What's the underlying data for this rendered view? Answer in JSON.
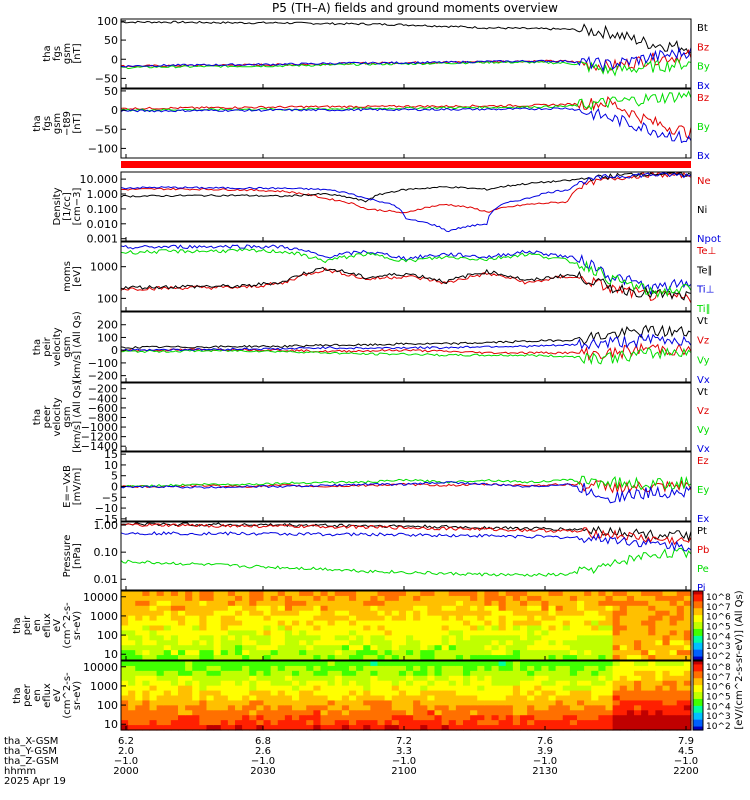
{
  "title": "P5 (TH–A) fields and ground moments overview",
  "colors": {
    "black": "#000000",
    "red": "#e00000",
    "green": "#00dd00",
    "blue": "#0000e0",
    "frame": "#000000",
    "separator": "#ff0000"
  },
  "chart_data": [
    {
      "id": "fgs",
      "type": "line",
      "ylabel": [
        "tha",
        "fgs",
        "gsm",
        "[nT]"
      ],
      "yticks": [
        "100",
        "50",
        "0",
        "−50"
      ],
      "ylim": [
        -75,
        105
      ],
      "series": [
        {
          "name": "Bt",
          "color": "#000000",
          "values": [
            97,
            97,
            96,
            95,
            95,
            93,
            92,
            90,
            86,
            82,
            80,
            78,
            70,
            40,
            30
          ]
        },
        {
          "name": "Bz",
          "color": "#e00000",
          "values": [
            -18,
            -17,
            -16,
            -15,
            -14,
            -12,
            -10,
            -9,
            -8,
            -6,
            -5,
            -5,
            -20,
            0,
            10
          ]
        },
        {
          "name": "By",
          "color": "#00dd00",
          "values": [
            -22,
            -20,
            -19,
            -18,
            -17,
            -15,
            -13,
            -12,
            -10,
            -8,
            -8,
            -10,
            -30,
            -20,
            -10
          ]
        },
        {
          "name": "Bx",
          "color": "#0000e0",
          "values": [
            -18,
            -16,
            -15,
            -14,
            -13,
            -11,
            -10,
            -9,
            -8,
            -6,
            -5,
            -5,
            -15,
            5,
            20
          ]
        }
      ]
    },
    {
      "id": "fgs-t89",
      "type": "line",
      "ylabel": [
        "tha",
        "fgs",
        "gsm",
        "−t89",
        "[nT]"
      ],
      "yticks": [
        "50",
        "0",
        "−50",
        "−100"
      ],
      "ylim": [
        -125,
        55
      ],
      "series": [
        {
          "name": "Bz",
          "color": "#e00000",
          "values": [
            4,
            5,
            6,
            7,
            8,
            9,
            9,
            10,
            10,
            11,
            12,
            15,
            20,
            -30,
            -60
          ]
        },
        {
          "name": "By",
          "color": "#00dd00",
          "values": [
            0,
            1,
            1,
            2,
            2,
            3,
            4,
            5,
            6,
            7,
            8,
            10,
            20,
            30,
            40
          ]
        },
        {
          "name": "Bx",
          "color": "#0000e0",
          "values": [
            -2,
            -2,
            -1,
            -1,
            0,
            0,
            1,
            1,
            2,
            2,
            3,
            5,
            -20,
            -50,
            -80
          ]
        }
      ]
    },
    {
      "id": "density",
      "type": "line",
      "log": true,
      "ylabel": [
        "Density",
        "[1/cc]",
        "[cm−3]"
      ],
      "yticks": [
        "10.000",
        "1.000",
        "0.100",
        "0.010",
        "0.001"
      ],
      "ylim": [
        0.0007,
        30
      ],
      "series": [
        {
          "name": "Ne",
          "color": "#e00000",
          "values": [
            2,
            2.2,
            2.1,
            1.9,
            1.5,
            0.5,
            0.1,
            0.05,
            0.2,
            0.06,
            0.2,
            0.3,
            10,
            20,
            18
          ]
        },
        {
          "name": "Ni",
          "color": "#000000",
          "values": [
            0.7,
            0.75,
            0.8,
            0.8,
            0.7,
            1,
            0.3,
            2,
            3,
            2,
            5,
            8,
            15,
            25,
            20
          ]
        },
        {
          "name": "Npot",
          "color": "#0000e0",
          "values": [
            2.5,
            2.8,
            2.6,
            2.5,
            2.4,
            2,
            0.5,
            0.02,
            0.003,
            0.01,
            0.5,
            2,
            15,
            20,
            18
          ]
        }
      ]
    },
    {
      "id": "moms",
      "type": "line",
      "log": true,
      "ylabel": [
        "moms",
        "[eV]"
      ],
      "yticks": [
        "1000",
        "100"
      ],
      "ylim": [
        40,
        6000
      ],
      "series": [
        {
          "name": "Te⊥",
          "color": "#e00000",
          "values": [
            200,
            210,
            220,
            220,
            300,
            800,
            400,
            500,
            300,
            600,
            300,
            500,
            200,
            120,
            100
          ]
        },
        {
          "name": "Te∥",
          "color": "#000000",
          "values": [
            220,
            230,
            240,
            240,
            330,
            900,
            450,
            600,
            330,
            700,
            350,
            550,
            220,
            140,
            110
          ]
        },
        {
          "name": "Ti⊥",
          "color": "#0000e0",
          "values": [
            4000,
            4200,
            4300,
            4400,
            4200,
            2000,
            3000,
            1800,
            2500,
            2000,
            3000,
            2000,
            500,
            200,
            300
          ]
        },
        {
          "name": "Ti∥",
          "color": "#00dd00",
          "values": [
            2800,
            3000,
            3100,
            3200,
            3000,
            1500,
            2500,
            1500,
            2000,
            1700,
            2500,
            1500,
            400,
            150,
            200
          ]
        }
      ]
    },
    {
      "id": "peir-v",
      "type": "line",
      "ylabel": [
        "tha",
        "peir",
        "velocity",
        "gsm",
        "[km/s] (All Qs)"
      ],
      "yticks": [
        "200",
        "100",
        "0",
        "−100",
        "−200"
      ],
      "ylim": [
        -250,
        300
      ],
      "series": [
        {
          "name": "Vt",
          "color": "#000000",
          "values": [
            20,
            25,
            25,
            30,
            30,
            40,
            40,
            50,
            50,
            60,
            70,
            80,
            120,
            150,
            140
          ]
        },
        {
          "name": "Vz",
          "color": "#e00000",
          "values": [
            0,
            0,
            5,
            5,
            0,
            -10,
            -5,
            0,
            -10,
            -20,
            -20,
            -20,
            -30,
            20,
            -10
          ]
        },
        {
          "name": "Vy",
          "color": "#00dd00",
          "values": [
            -10,
            -10,
            -5,
            -5,
            -10,
            -20,
            -30,
            -30,
            -40,
            -40,
            -40,
            -50,
            -60,
            -30,
            0
          ]
        },
        {
          "name": "Vx",
          "color": "#0000e0",
          "values": [
            0,
            5,
            5,
            10,
            10,
            20,
            15,
            20,
            20,
            30,
            30,
            40,
            60,
            80,
            80
          ]
        }
      ]
    },
    {
      "id": "peer-v",
      "type": "line",
      "ylabel": [
        "tha",
        "peer",
        "velocity",
        "gsm",
        "[km/s] (All Qs)"
      ],
      "yticks": [
        "−200",
        "−400",
        "−600",
        "−800",
        "−1000",
        "−1200",
        "−1400"
      ],
      "ylim": [
        -1500,
        -80
      ],
      "series": [
        {
          "name": "Vt",
          "color": "#000000",
          "values": []
        },
        {
          "name": "Vz",
          "color": "#e00000",
          "values": []
        },
        {
          "name": "Vy",
          "color": "#00dd00",
          "values": []
        },
        {
          "name": "Vx",
          "color": "#0000e0",
          "values": []
        }
      ]
    },
    {
      "id": "efield",
      "type": "line",
      "ylabel": [
        "E=−VxB",
        "[mV/m]"
      ],
      "yticks": [
        "15",
        "10",
        "5",
        "0",
        "−5",
        "−10",
        "−15"
      ],
      "ylim": [
        -16,
        16
      ],
      "series": [
        {
          "name": "Ez",
          "color": "#e00000",
          "values": [
            0,
            0,
            0.5,
            0,
            0.5,
            0,
            0.5,
            1,
            0.5,
            1,
            0.5,
            1,
            0,
            -1,
            0
          ]
        },
        {
          "name": "Ey",
          "color": "#00dd00",
          "values": [
            0,
            0.5,
            1,
            1,
            1.5,
            2,
            2,
            3,
            2,
            3,
            2,
            3,
            2,
            1,
            2
          ]
        },
        {
          "name": "Ex",
          "color": "#0000e0",
          "values": [
            -0.5,
            0,
            -0.5,
            0,
            0,
            0.5,
            1,
            1,
            2,
            1,
            0,
            1,
            -5,
            -3,
            -2
          ]
        }
      ]
    },
    {
      "id": "pressure",
      "type": "line",
      "log": true,
      "ylabel": [
        "Pressure",
        "[nPa]"
      ],
      "yticks": [
        "1.00",
        "0.10",
        "0.01"
      ],
      "ylim": [
        0.004,
        1.3
      ],
      "series": [
        {
          "name": "Pt",
          "color": "#000000",
          "values": [
            1.1,
            1.08,
            1.05,
            1.02,
            1.0,
            0.98,
            0.95,
            0.9,
            0.85,
            0.8,
            0.75,
            0.7,
            0.6,
            0.45,
            0.4
          ]
        },
        {
          "name": "Pb",
          "color": "#e00000",
          "values": [
            1.0,
            0.98,
            0.95,
            0.93,
            0.9,
            0.88,
            0.85,
            0.8,
            0.75,
            0.7,
            0.65,
            0.6,
            0.45,
            0.3,
            0.25
          ]
        },
        {
          "name": "Pe",
          "color": "#00dd00",
          "values": [
            0.045,
            0.04,
            0.035,
            0.03,
            0.027,
            0.024,
            0.02,
            0.018,
            0.016,
            0.015,
            0.014,
            0.015,
            0.03,
            0.08,
            0.1
          ]
        },
        {
          "name": "Pi",
          "color": "#0000e0",
          "values": [
            0.5,
            0.5,
            0.49,
            0.48,
            0.47,
            0.46,
            0.45,
            0.44,
            0.42,
            0.4,
            0.38,
            0.35,
            0.3,
            0.2,
            0.15
          ]
        }
      ]
    },
    {
      "id": "peir-spec",
      "type": "heatmap",
      "ylabel": [
        "tha",
        "peir",
        "en",
        "eflux",
        "eV",
        "(cm^2-s-",
        "sr-eV)"
      ],
      "yticks": [
        "10000",
        "1000",
        "100",
        "10"
      ],
      "colorbar_ticks": [
        "10^8",
        "10^7",
        "10^6",
        "10^5",
        "10^4",
        "10^3",
        "10^2"
      ],
      "colorbar_label": "[eV/(cm^2-s-sr-eV)] (All Qs)"
    },
    {
      "id": "peer-spec",
      "type": "heatmap",
      "ylabel": [
        "tha",
        "peer",
        "en",
        "eflux",
        "eV",
        "(cm^2-s-",
        "sr-eV)"
      ],
      "yticks": [
        "10000",
        "1000",
        "100",
        "10"
      ],
      "colorbar_ticks": [
        "10^8",
        "10^7",
        "10^6",
        "10^5",
        "10^4",
        "10^3",
        "10^2"
      ]
    }
  ],
  "xaxis": {
    "rows": [
      {
        "label": "tha_X-GSM",
        "values": [
          "6.2",
          "6.8",
          "7.2",
          "7.6",
          "7.9"
        ]
      },
      {
        "label": "tha_Y-GSM",
        "values": [
          "2.0",
          "2.6",
          "3.3",
          "3.9",
          "4.5"
        ]
      },
      {
        "label": "tha_Z-GSM",
        "values": [
          "−1.0",
          "−1.0",
          "−1.0",
          "−1.0",
          "−1.0"
        ]
      },
      {
        "label": "hhmm",
        "values": [
          "2000",
          "2030",
          "2100",
          "2130",
          "2200"
        ]
      }
    ],
    "date": "2025 Apr 19"
  }
}
